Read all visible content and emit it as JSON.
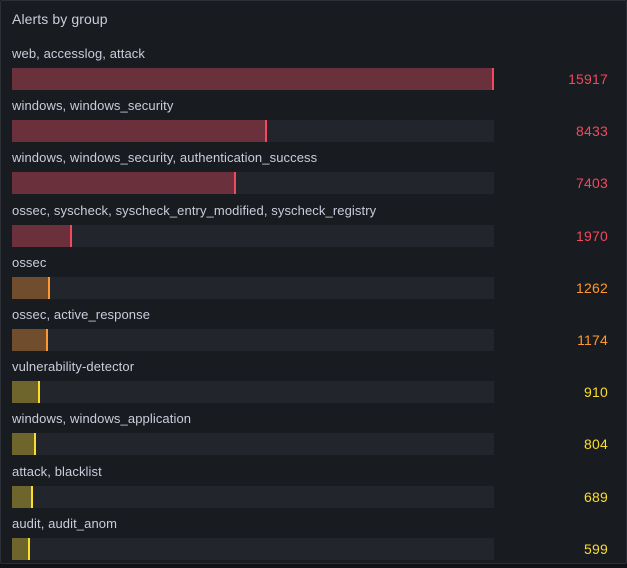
{
  "panel": {
    "title": "Alerts by group"
  },
  "colors": {
    "red": "#f2495c",
    "orange": "#ff9830",
    "yellow": "#fade2a",
    "track": "#22252b"
  },
  "chart_data": {
    "type": "bar",
    "orientation": "horizontal",
    "title": "Alerts by group",
    "categories": [
      "web, accesslog, attack",
      "windows, windows_security",
      "windows, windows_security, authentication_success",
      "ossec, syscheck, syscheck_entry_modified, syscheck_registry",
      "ossec",
      "ossec, active_response",
      "vulnerability-detector",
      "windows, windows_application",
      "attack, blacklist",
      "audit, audit_anom"
    ],
    "values": [
      15917,
      8433,
      7403,
      1970,
      1262,
      1174,
      910,
      804,
      689,
      599
    ],
    "value_labels": [
      "15917",
      "8433",
      "7403",
      "1970",
      "1262",
      "1174",
      "910",
      "804",
      "689",
      "599"
    ],
    "xlim": [
      0,
      15917
    ],
    "grid": false,
    "legend": "none"
  }
}
